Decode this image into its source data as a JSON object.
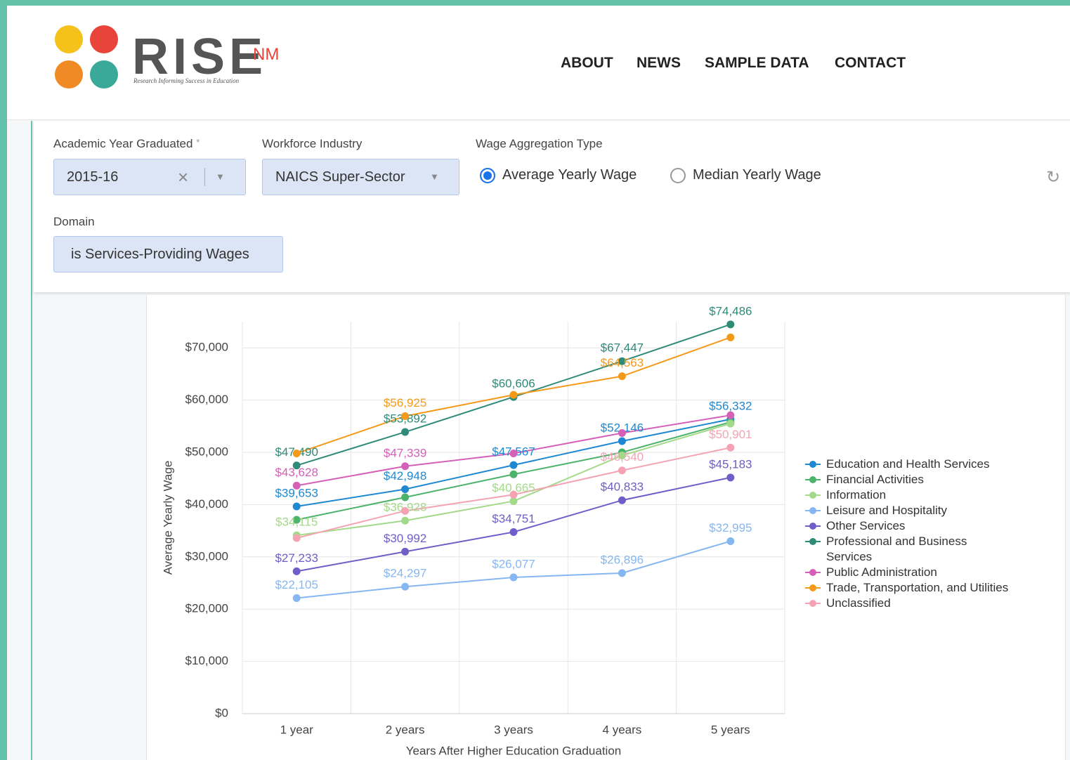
{
  "header": {
    "logo": {
      "name": "RISE",
      "suffix": "NM",
      "tagline": "Research Informing Success in Education"
    },
    "nav": [
      "ABOUT",
      "NEWS",
      "SAMPLE DATA",
      "CONTACT"
    ]
  },
  "filters": {
    "academic_year": {
      "label": "Academic Year Graduated",
      "required": "*",
      "value": "2015-16"
    },
    "industry": {
      "label": "Workforce Industry",
      "value": "NAICS Super-Sector"
    },
    "wage_type": {
      "label": "Wage Aggregation Type",
      "options": [
        "Average Yearly Wage",
        "Median Yearly Wage"
      ],
      "selected": 0
    },
    "domain": {
      "label": "Domain",
      "value": "is Services-Providing Wages"
    }
  },
  "chart_data": {
    "type": "line",
    "x_label": "Years After Higher Education Graduation",
    "y_label": "Average Yearly Wage",
    "categories": [
      "1 year",
      "2 years",
      "3 years",
      "4 years",
      "5 years"
    ],
    "ylim": [
      0,
      75000
    ],
    "yticks": [
      {
        "value": 0,
        "label": "$0"
      },
      {
        "value": 10000,
        "label": "$10,000"
      },
      {
        "value": 20000,
        "label": "$20,000"
      },
      {
        "value": 30000,
        "label": "$30,000"
      },
      {
        "value": 40000,
        "label": "$40,000"
      },
      {
        "value": 50000,
        "label": "$50,000"
      },
      {
        "value": 60000,
        "label": "$60,000"
      },
      {
        "value": 70000,
        "label": "$70,000"
      }
    ],
    "grid": true,
    "legend": "right",
    "series": [
      {
        "name": "Education and Health Services",
        "color": "#1e88d0",
        "values": [
          39653,
          42948,
          47567,
          52146,
          56332
        ],
        "value_labels": [
          "$39,653",
          "$42,948",
          "$47,567",
          "$52,146",
          "$56,332"
        ]
      },
      {
        "name": "Financial Activities",
        "color": "#4db26a",
        "values": [
          37100,
          41400,
          45800,
          50000,
          55800
        ],
        "value_labels": [
          null,
          null,
          null,
          null,
          null
        ]
      },
      {
        "name": "Information",
        "color": "#a3d98a",
        "values": [
          34115,
          36928,
          40665,
          49400,
          55500
        ],
        "value_labels": [
          "$34,115",
          "$36,928",
          "$40,665",
          null,
          null
        ]
      },
      {
        "name": "Leisure and Hospitality",
        "color": "#86b7f0",
        "values": [
          22105,
          24297,
          26077,
          26896,
          32995
        ],
        "value_labels": [
          "$22,105",
          "$24,297",
          "$26,077",
          "$26,896",
          "$32,995"
        ]
      },
      {
        "name": "Other Services",
        "color": "#6d5fc7",
        "values": [
          27233,
          30992,
          34751,
          40833,
          45183
        ],
        "value_labels": [
          "$27,233",
          "$30,992",
          "$34,751",
          "$40,833",
          "$45,183"
        ]
      },
      {
        "name": "Professional and Business Services",
        "color": "#2f8a78",
        "values": [
          47490,
          53892,
          60606,
          67447,
          74486
        ],
        "value_labels": [
          "$47,490",
          "$53,892",
          "$60,606",
          "$67,447",
          "$74,486"
        ]
      },
      {
        "name": "Public Administration",
        "color": "#d560b8",
        "values": [
          43628,
          47339,
          49800,
          53700,
          57100
        ],
        "value_labels": [
          "$43,628",
          "$47,339",
          null,
          null,
          null
        ]
      },
      {
        "name": "Trade, Transportation, and Utilities",
        "color": "#f49a1b",
        "values": [
          49800,
          56925,
          61000,
          64563,
          72000
        ],
        "value_labels": [
          null,
          "$56,925",
          null,
          "$64,563",
          null
        ]
      },
      {
        "name": "Unclassified",
        "color": "#f5a3b3",
        "values": [
          33600,
          38800,
          41900,
          46540,
          50901
        ],
        "value_labels": [
          null,
          null,
          null,
          "$46,540",
          "$50,901"
        ]
      }
    ]
  }
}
